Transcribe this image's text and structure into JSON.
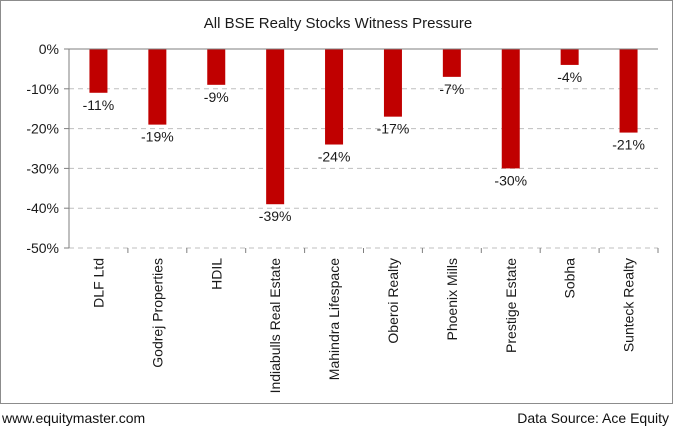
{
  "chart_data": {
    "type": "bar",
    "title": "All BSE Realty Stocks Witness Pressure",
    "categories": [
      "DLF Ltd",
      "Godrej Properties",
      "HDIL",
      "Indiabulls Real Estate",
      "Mahindra Lifespace",
      "Oberoi Realty",
      "Phoenix Mills",
      "Prestige Estate",
      "Sobha",
      "Sunteck Realty"
    ],
    "values": [
      -11,
      -19,
      -9,
      -39,
      -24,
      -17,
      -7,
      -30,
      -4,
      -21
    ],
    "data_labels": [
      "-11%",
      "-19%",
      "-9%",
      "-39%",
      "-24%",
      "-17%",
      "-7%",
      "-30%",
      "-4%",
      "-21%"
    ],
    "yticks": [
      0,
      -10,
      -20,
      -30,
      -40,
      -50
    ],
    "ytick_labels": [
      "0%",
      "-10%",
      "-20%",
      "-30%",
      "-40%",
      "-50%"
    ],
    "ylim": [
      -50,
      0
    ],
    "grid": true,
    "bar_color": "#c00000",
    "grid_color": "#bfbfbf"
  },
  "footer": {
    "website": "www.equitymaster.com",
    "source": "Data Source: Ace Equity"
  }
}
